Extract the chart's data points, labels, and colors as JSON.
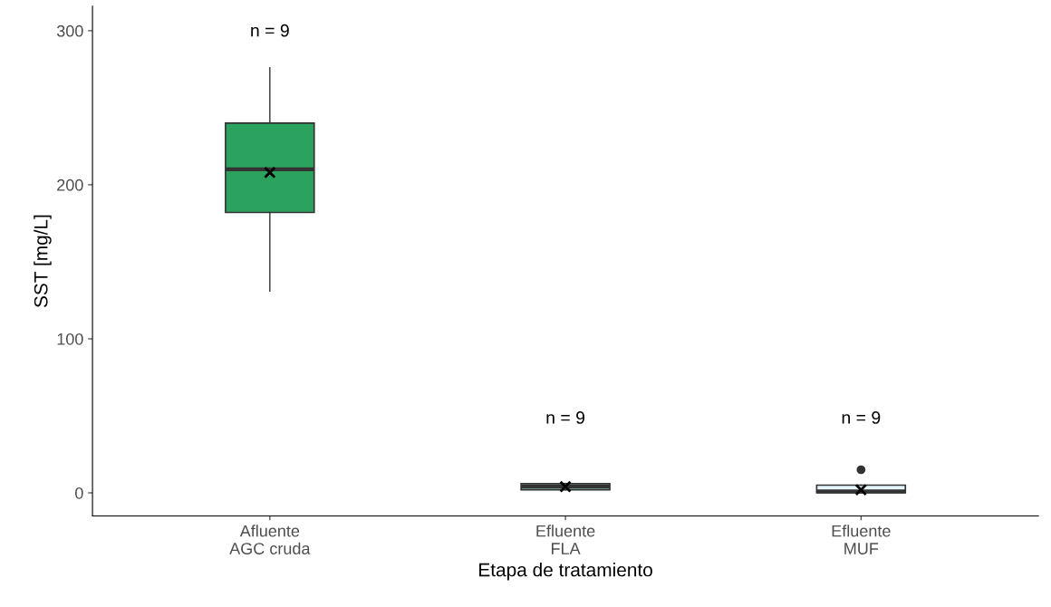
{
  "chart_data": {
    "type": "box",
    "xlabel": "Etapa de tratamiento",
    "ylabel": "SST [mg/L]",
    "categories": [
      "Afluente\nAGC cruda",
      "Efluente\nFLA",
      "Efluente\nMUF"
    ],
    "colors": [
      "#2ca25f",
      "#99d8c9",
      "#e5f5f9"
    ],
    "boxes": [
      {
        "low": 131,
        "q1": 182,
        "median": 210,
        "q3": 240,
        "high": 276,
        "mean": 208
      },
      {
        "low": 2,
        "q1": 2,
        "median": 4,
        "q3": 6,
        "high": 6,
        "mean": 4
      },
      {
        "low": 0,
        "q1": 0,
        "median": 1,
        "q3": 5,
        "high": 5,
        "mean": 2,
        "outliers": [
          15
        ]
      }
    ],
    "annotations": [
      "n = 9",
      "n = 9",
      "n = 9"
    ],
    "ylim": [
      -15,
      316
    ],
    "yticks": [
      0,
      100,
      200,
      300
    ],
    "grid": false,
    "legend": false
  }
}
